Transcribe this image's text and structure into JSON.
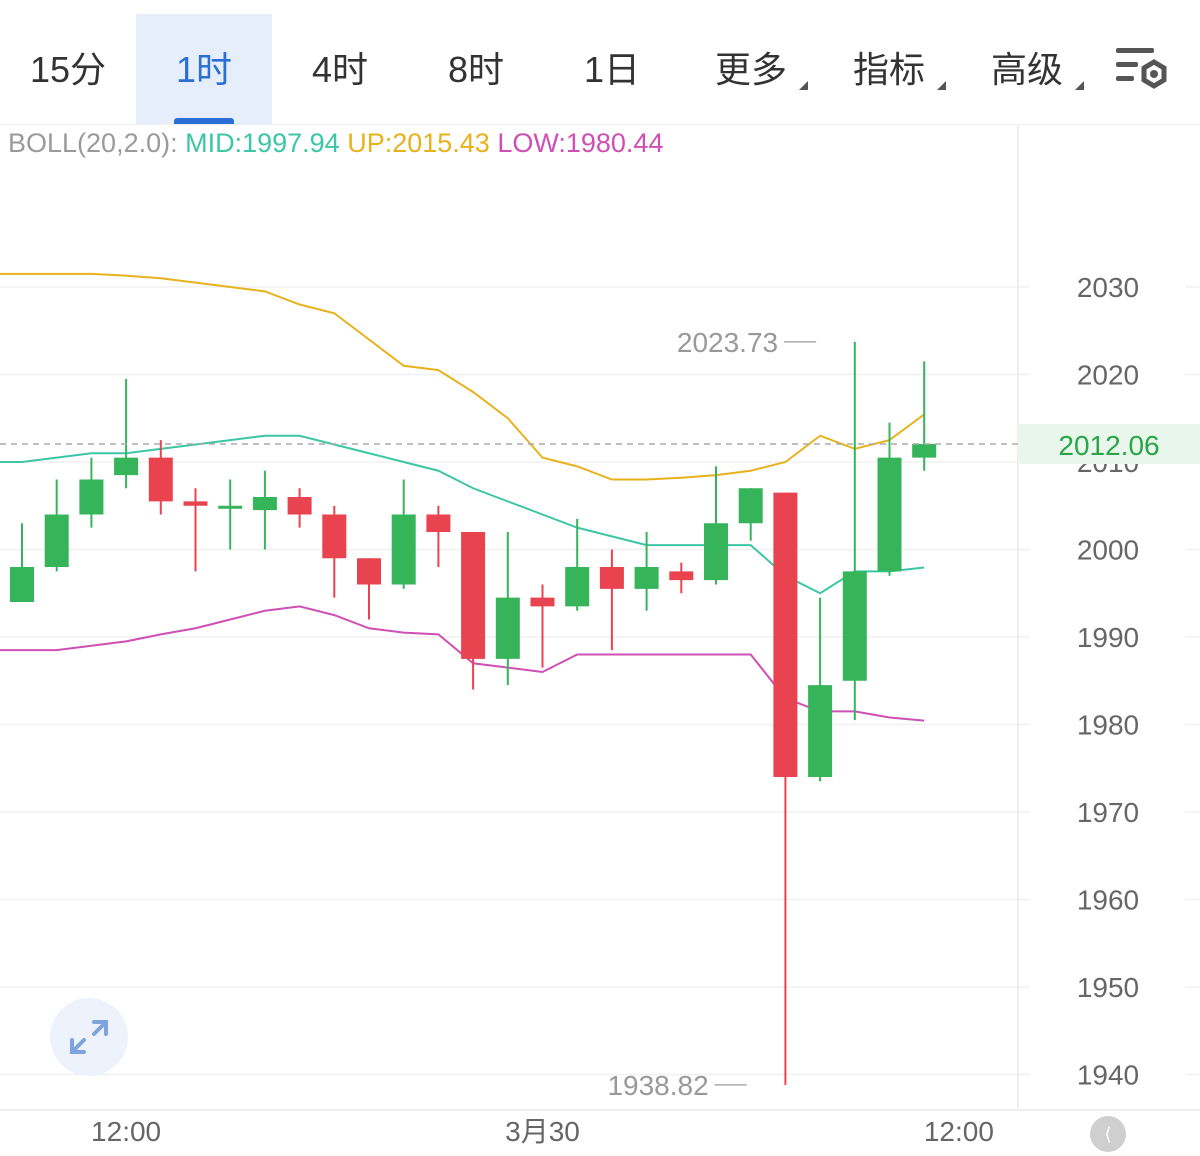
{
  "tabs": [
    {
      "id": "15m",
      "label": "15分",
      "active": false,
      "dropdown": false
    },
    {
      "id": "1h",
      "label": "1时",
      "active": true,
      "dropdown": false
    },
    {
      "id": "4h",
      "label": "4时",
      "active": false,
      "dropdown": false
    },
    {
      "id": "8h",
      "label": "8时",
      "active": false,
      "dropdown": false
    },
    {
      "id": "1d",
      "label": "1日",
      "active": false,
      "dropdown": false
    },
    {
      "id": "more",
      "label": "更多",
      "active": false,
      "dropdown": true
    },
    {
      "id": "indicators",
      "label": "指标",
      "active": false,
      "dropdown": true
    },
    {
      "id": "advanced",
      "label": "高级",
      "active": false,
      "dropdown": true
    }
  ],
  "boll": {
    "label": "BOLL(20,2.0):",
    "mid": "MID:1997.94",
    "up": "UP:2015.43",
    "low": "LOW:1980.44"
  },
  "colors": {
    "up_candle": "#35b45a",
    "down_candle": "#e8434f",
    "mid_line": "#3cc6a7",
    "upper_line": "#e8b21d",
    "lower_line": "#cf4fb4",
    "price_label": "#2aa548",
    "accent": "#2b6fd6"
  },
  "chart_data": {
    "type": "candlestick",
    "ylim": [
      1935,
      2045
    ],
    "yticks": [
      1940,
      1950,
      1960,
      1970,
      1980,
      1990,
      2000,
      2010,
      2020,
      2030
    ],
    "xticks": [
      {
        "index": 3,
        "label": "12:00"
      },
      {
        "index": 15,
        "label": "3月30"
      },
      {
        "index": 27,
        "label": "12:00"
      }
    ],
    "x_range": [
      -0.6,
      28.8
    ],
    "current_price": "2012.06",
    "current_value": 2012.06,
    "high_marker": {
      "index": 23,
      "value": 2023.73,
      "label": "2023.73"
    },
    "low_marker": {
      "index": 21,
      "value": 1938.82,
      "label": "1938.82"
    },
    "candles": [
      {
        "open": 1994,
        "high": 2003,
        "low": 1994,
        "close": 1998
      },
      {
        "open": 1998,
        "high": 2008,
        "low": 1997.5,
        "close": 2004
      },
      {
        "open": 2004,
        "high": 2010.5,
        "low": 2002.5,
        "close": 2008
      },
      {
        "open": 2008.5,
        "high": 2019.5,
        "low": 2007,
        "close": 2010.5
      },
      {
        "open": 2010.5,
        "high": 2012.5,
        "low": 2004,
        "close": 2005.5
      },
      {
        "open": 2005.5,
        "high": 2007,
        "low": 1997.5,
        "close": 2005
      },
      {
        "open": 2005,
        "high": 2008,
        "low": 2000,
        "close": 2005
      },
      {
        "open": 2004.5,
        "high": 2009,
        "low": 2000,
        "close": 2006
      },
      {
        "open": 2006,
        "high": 2007,
        "low": 2002.5,
        "close": 2004
      },
      {
        "open": 2004,
        "high": 2005,
        "low": 1994.5,
        "close": 1999
      },
      {
        "open": 1999,
        "high": 1999,
        "low": 1992,
        "close": 1996
      },
      {
        "open": 1996,
        "high": 2008,
        "low": 1995.5,
        "close": 2004
      },
      {
        "open": 2004,
        "high": 2005,
        "low": 1998,
        "close": 2002
      },
      {
        "open": 2002,
        "high": 2002,
        "low": 1984,
        "close": 1987.5
      },
      {
        "open": 1987.5,
        "high": 2002,
        "low": 1984.5,
        "close": 1994.5
      },
      {
        "open": 1994.5,
        "high": 1996,
        "low": 1986.5,
        "close": 1993.5
      },
      {
        "open": 1993.5,
        "high": 2003.5,
        "low": 1993,
        "close": 1998
      },
      {
        "open": 1998,
        "high": 2000,
        "low": 1988.5,
        "close": 1995.5
      },
      {
        "open": 1995.5,
        "high": 2002,
        "low": 1993,
        "close": 1998
      },
      {
        "open": 1997.5,
        "high": 1998.5,
        "low": 1995,
        "close": 1996.5
      },
      {
        "open": 1996.5,
        "high": 2009.5,
        "low": 1996,
        "close": 2003
      },
      {
        "open": 2003,
        "high": 2007,
        "low": 2001,
        "close": 2007
      },
      {
        "open": 2006.5,
        "high": 2006.5,
        "low": 1938.82,
        "close": 1974
      },
      {
        "open": 1974,
        "high": 1994.5,
        "low": 1973.5,
        "close": 1984.5
      },
      {
        "open": 1985,
        "high": 2023.73,
        "low": 1980.5,
        "close": 1997.5
      },
      {
        "open": 1997.5,
        "high": 2014.5,
        "low": 1997,
        "close": 2010.5
      },
      {
        "open": 2010.5,
        "high": 2021.5,
        "low": 2009,
        "close": 2012.06
      }
    ],
    "candle_start_index": 0,
    "series": [
      {
        "name": "MID",
        "color": "#3cc6a7",
        "values": [
          2010,
          2010.5,
          2011,
          2011,
          2011.5,
          2012,
          2012.5,
          2013,
          2013,
          2012,
          2011,
          2010,
          2009,
          2007,
          2005.5,
          2004,
          2002.5,
          2001.5,
          2000.5,
          2000.5,
          2000.5,
          2000.5,
          1997,
          1995,
          1997.5,
          1997.5,
          1997.94
        ]
      },
      {
        "name": "UP",
        "color": "#e8b21d",
        "values": [
          2031.5,
          2031.5,
          2031.5,
          2031.3,
          2031,
          2030.5,
          2030,
          2029.5,
          2028,
          2027,
          2024,
          2021,
          2020.5,
          2018,
          2015,
          2010.5,
          2009.5,
          2008,
          2008,
          2008.2,
          2008.5,
          2009,
          2010,
          2013,
          2011.5,
          2012.5,
          2015.43
        ]
      },
      {
        "name": "LOW",
        "color": "#cf4fb4",
        "values": [
          1988.5,
          1988.5,
          1989,
          1989.5,
          1990.3,
          1991,
          1992,
          1993,
          1993.5,
          1992.5,
          1991,
          1990.5,
          1990.3,
          1987,
          1986.5,
          1986,
          1988,
          1988,
          1988,
          1988,
          1988,
          1988,
          1983,
          1981.5,
          1981.5,
          1980.8,
          1980.44
        ]
      }
    ]
  }
}
